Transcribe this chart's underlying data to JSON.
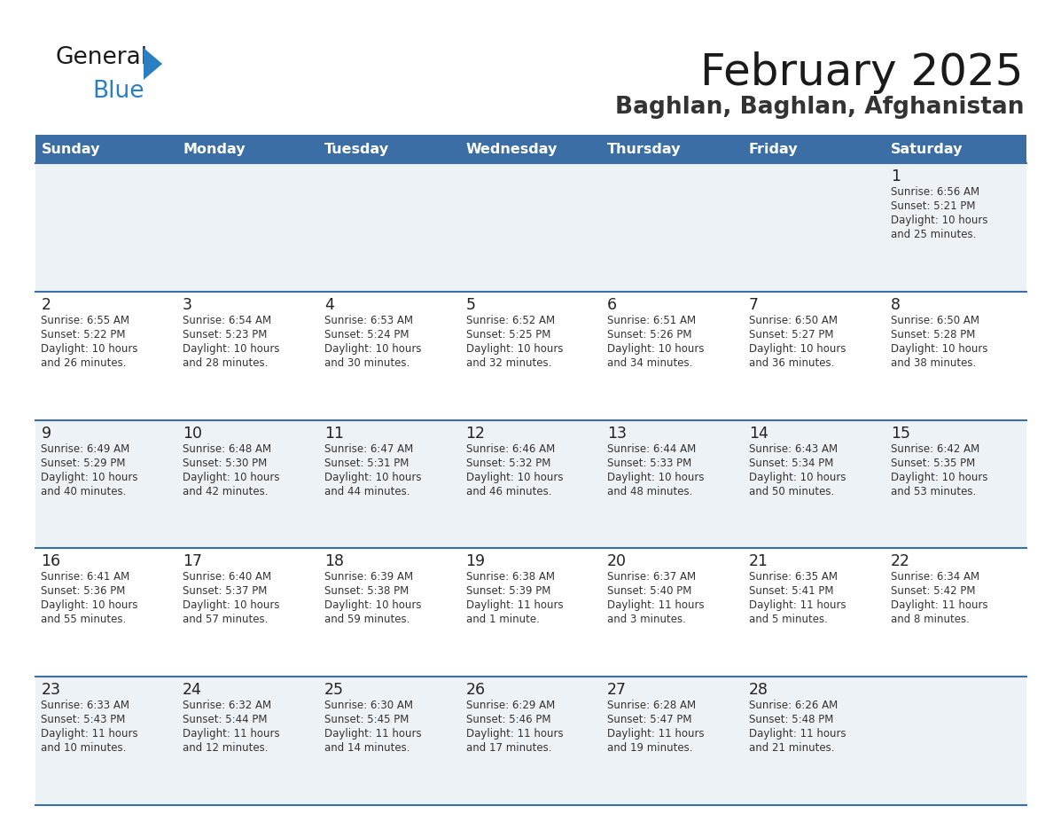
{
  "title": "February 2025",
  "subtitle": "Baghlan, Baghlan, Afghanistan",
  "days_of_week": [
    "Sunday",
    "Monday",
    "Tuesday",
    "Wednesday",
    "Thursday",
    "Friday",
    "Saturday"
  ],
  "header_bg": "#3b6ea5",
  "header_text_color": "#ffffff",
  "row_bg_light": "#edf2f7",
  "row_bg_white": "#ffffff",
  "cell_border_color": "#3b6ea5",
  "title_color": "#1a1a1a",
  "subtitle_color": "#333333",
  "day_num_color": "#222222",
  "info_color": "#333333",
  "logo_general_color": "#1a1a1a",
  "logo_blue_color": "#2b7ec1",
  "weeks": [
    [
      {
        "day": null,
        "sunrise": null,
        "sunset": null,
        "daylight": null
      },
      {
        "day": null,
        "sunrise": null,
        "sunset": null,
        "daylight": null
      },
      {
        "day": null,
        "sunrise": null,
        "sunset": null,
        "daylight": null
      },
      {
        "day": null,
        "sunrise": null,
        "sunset": null,
        "daylight": null
      },
      {
        "day": null,
        "sunrise": null,
        "sunset": null,
        "daylight": null
      },
      {
        "day": null,
        "sunrise": null,
        "sunset": null,
        "daylight": null
      },
      {
        "day": 1,
        "sunrise": "6:56 AM",
        "sunset": "5:21 PM",
        "daylight": "10 hours\nand 25 minutes."
      }
    ],
    [
      {
        "day": 2,
        "sunrise": "6:55 AM",
        "sunset": "5:22 PM",
        "daylight": "10 hours\nand 26 minutes."
      },
      {
        "day": 3,
        "sunrise": "6:54 AM",
        "sunset": "5:23 PM",
        "daylight": "10 hours\nand 28 minutes."
      },
      {
        "day": 4,
        "sunrise": "6:53 AM",
        "sunset": "5:24 PM",
        "daylight": "10 hours\nand 30 minutes."
      },
      {
        "day": 5,
        "sunrise": "6:52 AM",
        "sunset": "5:25 PM",
        "daylight": "10 hours\nand 32 minutes."
      },
      {
        "day": 6,
        "sunrise": "6:51 AM",
        "sunset": "5:26 PM",
        "daylight": "10 hours\nand 34 minutes."
      },
      {
        "day": 7,
        "sunrise": "6:50 AM",
        "sunset": "5:27 PM",
        "daylight": "10 hours\nand 36 minutes."
      },
      {
        "day": 8,
        "sunrise": "6:50 AM",
        "sunset": "5:28 PM",
        "daylight": "10 hours\nand 38 minutes."
      }
    ],
    [
      {
        "day": 9,
        "sunrise": "6:49 AM",
        "sunset": "5:29 PM",
        "daylight": "10 hours\nand 40 minutes."
      },
      {
        "day": 10,
        "sunrise": "6:48 AM",
        "sunset": "5:30 PM",
        "daylight": "10 hours\nand 42 minutes."
      },
      {
        "day": 11,
        "sunrise": "6:47 AM",
        "sunset": "5:31 PM",
        "daylight": "10 hours\nand 44 minutes."
      },
      {
        "day": 12,
        "sunrise": "6:46 AM",
        "sunset": "5:32 PM",
        "daylight": "10 hours\nand 46 minutes."
      },
      {
        "day": 13,
        "sunrise": "6:44 AM",
        "sunset": "5:33 PM",
        "daylight": "10 hours\nand 48 minutes."
      },
      {
        "day": 14,
        "sunrise": "6:43 AM",
        "sunset": "5:34 PM",
        "daylight": "10 hours\nand 50 minutes."
      },
      {
        "day": 15,
        "sunrise": "6:42 AM",
        "sunset": "5:35 PM",
        "daylight": "10 hours\nand 53 minutes."
      }
    ],
    [
      {
        "day": 16,
        "sunrise": "6:41 AM",
        "sunset": "5:36 PM",
        "daylight": "10 hours\nand 55 minutes."
      },
      {
        "day": 17,
        "sunrise": "6:40 AM",
        "sunset": "5:37 PM",
        "daylight": "10 hours\nand 57 minutes."
      },
      {
        "day": 18,
        "sunrise": "6:39 AM",
        "sunset": "5:38 PM",
        "daylight": "10 hours\nand 59 minutes."
      },
      {
        "day": 19,
        "sunrise": "6:38 AM",
        "sunset": "5:39 PM",
        "daylight": "11 hours\nand 1 minute."
      },
      {
        "day": 20,
        "sunrise": "6:37 AM",
        "sunset": "5:40 PM",
        "daylight": "11 hours\nand 3 minutes."
      },
      {
        "day": 21,
        "sunrise": "6:35 AM",
        "sunset": "5:41 PM",
        "daylight": "11 hours\nand 5 minutes."
      },
      {
        "day": 22,
        "sunrise": "6:34 AM",
        "sunset": "5:42 PM",
        "daylight": "11 hours\nand 8 minutes."
      }
    ],
    [
      {
        "day": 23,
        "sunrise": "6:33 AM",
        "sunset": "5:43 PM",
        "daylight": "11 hours\nand 10 minutes."
      },
      {
        "day": 24,
        "sunrise": "6:32 AM",
        "sunset": "5:44 PM",
        "daylight": "11 hours\nand 12 minutes."
      },
      {
        "day": 25,
        "sunrise": "6:30 AM",
        "sunset": "5:45 PM",
        "daylight": "11 hours\nand 14 minutes."
      },
      {
        "day": 26,
        "sunrise": "6:29 AM",
        "sunset": "5:46 PM",
        "daylight": "11 hours\nand 17 minutes."
      },
      {
        "day": 27,
        "sunrise": "6:28 AM",
        "sunset": "5:47 PM",
        "daylight": "11 hours\nand 19 minutes."
      },
      {
        "day": 28,
        "sunrise": "6:26 AM",
        "sunset": "5:48 PM",
        "daylight": "11 hours\nand 21 minutes."
      },
      {
        "day": null,
        "sunrise": null,
        "sunset": null,
        "daylight": null
      }
    ]
  ],
  "row_bg_pattern": [
    1,
    0,
    1,
    0,
    1
  ]
}
